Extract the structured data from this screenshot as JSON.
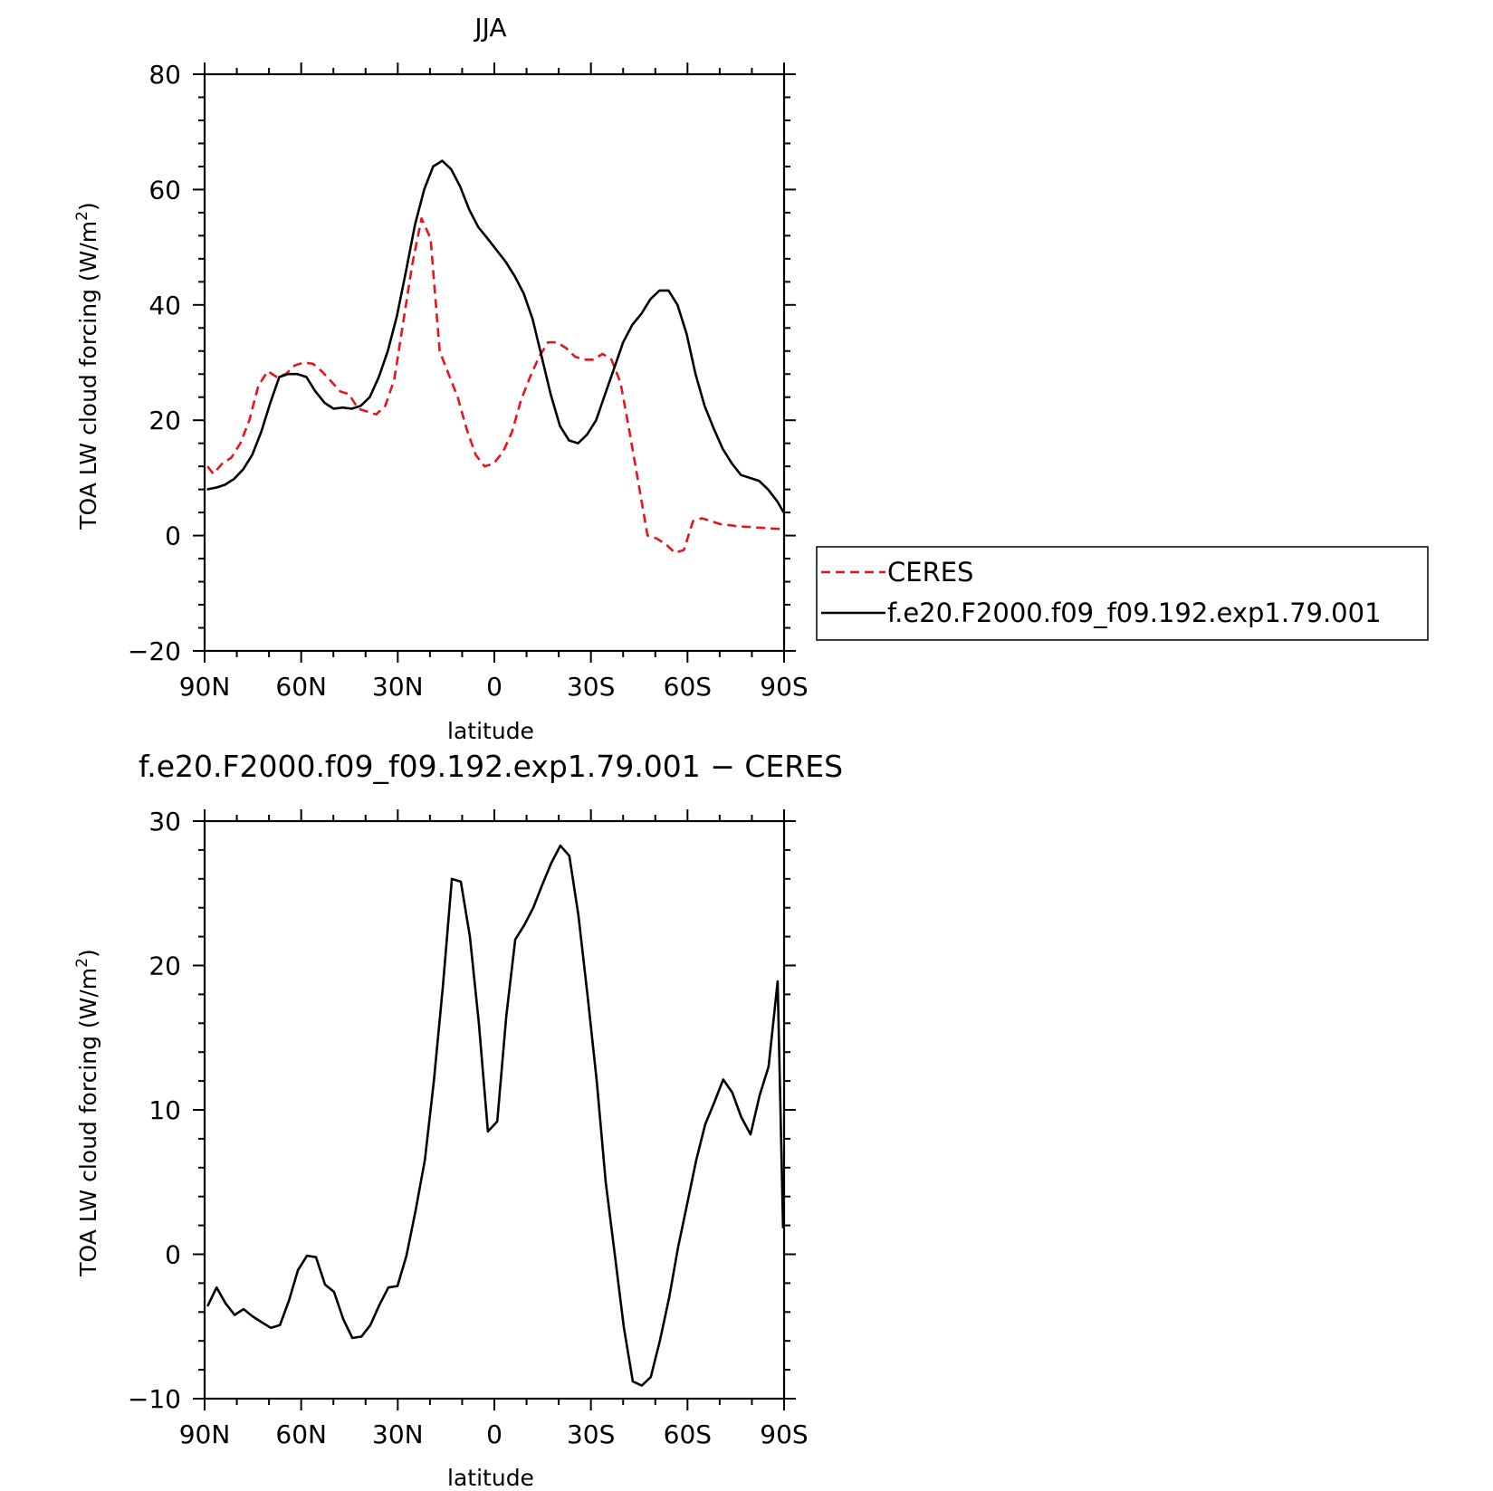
{
  "chart_data": [
    {
      "type": "line",
      "title": "JJA",
      "xlabel": "latitude",
      "ylabel_main": "TOA LW cloud forcing (W/m",
      "ylabel_sup": "2",
      "ylabel_close": ")",
      "xlim": [
        -90,
        90
      ],
      "ylim": [
        -20,
        80
      ],
      "x_ticks": [
        -90,
        -60,
        -30,
        0,
        30,
        60,
        90
      ],
      "x_tick_labels": [
        "90N",
        "60N",
        "30N",
        "0",
        "30S",
        "60S",
        "90S"
      ],
      "y_ticks": [
        -20,
        0,
        20,
        40,
        60,
        80
      ],
      "y_tick_labels": [
        "−20",
        "0",
        "20",
        "40",
        "60",
        "80"
      ],
      "legend_placement": "right",
      "series": [
        {
          "name": "CERES",
          "color": "#e8141b",
          "dash": "dashed",
          "x": [
            -89.1,
            -87.3,
            -84.5,
            -81.7,
            -78.9,
            -76.1,
            -73.3,
            -70.4,
            -67.6,
            -64.8,
            -62.0,
            -59.2,
            -56.4,
            -53.6,
            -50.8,
            -47.9,
            -45.1,
            -42.3,
            -39.5,
            -36.7,
            -33.9,
            -31.1,
            -28.3,
            -25.5,
            -22.6,
            -19.8,
            -17.0,
            -14.2,
            -11.4,
            -8.6,
            -5.8,
            -3.0,
            -0.2,
            2.7,
            5.5,
            8.3,
            11.1,
            13.9,
            16.7,
            19.5,
            22.3,
            25.1,
            28.0,
            30.8,
            33.6,
            36.4,
            39.2,
            42.0,
            44.8,
            47.6,
            50.4,
            53.3,
            56.1,
            58.9,
            61.7,
            64.5,
            67.3,
            70.1,
            72.9,
            75.7,
            78.6,
            81.4,
            84.2,
            87.0,
            89.8
          ],
          "y": [
            12.0,
            10.7,
            12.5,
            13.5,
            16.0,
            20.0,
            26.0,
            28.5,
            27.5,
            28.0,
            29.5,
            30.0,
            29.8,
            28.5,
            26.8,
            25.0,
            24.5,
            22.0,
            21.5,
            21.0,
            22.5,
            27.0,
            37.0,
            47.0,
            55.0,
            51.5,
            32.0,
            28.0,
            24.0,
            18.5,
            14.0,
            12.0,
            12.5,
            14.5,
            18.0,
            23.5,
            27.5,
            31.0,
            33.5,
            33.5,
            32.5,
            31.0,
            30.5,
            30.5,
            31.5,
            30.5,
            26.5,
            18.0,
            9.0,
            0.0,
            -0.5,
            -1.5,
            -3.0,
            -2.5,
            2.5,
            3.0,
            2.5,
            2.0,
            1.8,
            1.6,
            1.5,
            1.4,
            1.3,
            1.2,
            1.1
          ]
        },
        {
          "name": "f.e20.F2000.f09_f09.192.exp1.79.001",
          "color": "#000000",
          "dash": "solid",
          "x": [
            -89.3,
            -86.5,
            -83.7,
            -80.9,
            -78.0,
            -75.2,
            -72.4,
            -69.6,
            -66.8,
            -64.0,
            -61.2,
            -58.4,
            -55.6,
            -52.7,
            -49.9,
            -47.1,
            -44.3,
            -41.5,
            -38.7,
            -35.9,
            -33.1,
            -30.3,
            -27.4,
            -24.6,
            -21.8,
            -19.0,
            -16.2,
            -13.4,
            -10.6,
            -7.8,
            -5.0,
            -2.1,
            0.7,
            3.5,
            6.3,
            9.1,
            11.9,
            14.7,
            17.5,
            20.4,
            23.2,
            26.0,
            28.8,
            31.6,
            34.4,
            37.2,
            40.0,
            42.8,
            45.7,
            48.5,
            51.3,
            54.1,
            56.9,
            59.7,
            62.5,
            65.3,
            68.2,
            71.0,
            73.8,
            76.6,
            79.4,
            82.2,
            85.0,
            87.8,
            89.9
          ],
          "y": [
            8.0,
            8.3,
            8.8,
            9.8,
            11.5,
            14.0,
            18.0,
            23.0,
            27.5,
            28.0,
            28.0,
            27.5,
            25.0,
            23.0,
            22.0,
            22.2,
            22.0,
            22.5,
            24.0,
            27.5,
            32.0,
            38.0,
            46.0,
            54.0,
            60.0,
            64.0,
            65.0,
            63.5,
            60.5,
            56.5,
            53.5,
            51.5,
            49.5,
            47.5,
            45.0,
            42.0,
            37.5,
            31.0,
            24.5,
            19.0,
            16.5,
            16.0,
            17.5,
            20.0,
            24.5,
            29.0,
            33.5,
            36.5,
            38.5,
            41.0,
            42.5,
            42.5,
            40.0,
            35.0,
            28.0,
            22.5,
            18.5,
            15.0,
            12.5,
            10.5,
            10.0,
            9.5,
            8.0,
            6.0,
            4.0
          ]
        }
      ]
    },
    {
      "type": "line",
      "title": "f.e20.F2000.f09_f09.192.exp1.79.001 − CERES",
      "xlabel": "latitude",
      "ylabel_main": "TOA LW cloud forcing (W/m",
      "ylabel_sup": "2",
      "ylabel_close": ")",
      "xlim": [
        -90,
        90
      ],
      "ylim": [
        -10,
        30
      ],
      "x_ticks": [
        -90,
        -60,
        -30,
        0,
        30,
        60,
        90
      ],
      "x_tick_labels": [
        "90N",
        "60N",
        "30N",
        "0",
        "30S",
        "60S",
        "90S"
      ],
      "y_ticks": [
        -10,
        0,
        10,
        20,
        30
      ],
      "y_tick_labels": [
        "−10",
        "0",
        "10",
        "20",
        "30"
      ],
      "series": [
        {
          "color": "#000000",
          "dash": "solid",
          "x": [
            -89.1,
            -86.3,
            -83.5,
            -80.7,
            -77.9,
            -75.1,
            -72.3,
            -69.4,
            -66.6,
            -63.8,
            -61.0,
            -58.2,
            -55.4,
            -52.6,
            -49.8,
            -46.9,
            -44.1,
            -41.3,
            -38.5,
            -35.7,
            -32.9,
            -30.1,
            -27.3,
            -24.5,
            -21.6,
            -18.8,
            -16.0,
            -13.2,
            -10.4,
            -7.6,
            -4.8,
            -2.0,
            0.9,
            3.7,
            6.5,
            9.3,
            12.1,
            14.9,
            17.7,
            20.5,
            23.3,
            26.1,
            28.9,
            31.8,
            34.6,
            37.4,
            40.2,
            43.0,
            45.8,
            48.6,
            51.4,
            54.3,
            57.1,
            59.9,
            62.7,
            65.5,
            68.3,
            71.1,
            73.9,
            76.7,
            79.6,
            82.4,
            85.2,
            88.0,
            89.7
          ],
          "y": [
            -3.6,
            -2.3,
            -3.4,
            -4.2,
            -3.8,
            -4.3,
            -4.7,
            -5.1,
            -4.9,
            -3.2,
            -1.1,
            -0.1,
            -0.2,
            -2.1,
            -2.6,
            -4.5,
            -5.8,
            -5.7,
            -4.9,
            -3.5,
            -2.3,
            -2.2,
            -0.1,
            3.0,
            6.5,
            12.0,
            18.5,
            26.0,
            25.8,
            22.0,
            16.0,
            8.5,
            9.2,
            16.5,
            21.8,
            22.8,
            24.0,
            25.6,
            27.1,
            28.3,
            27.6,
            23.5,
            18.0,
            12.0,
            5.0,
            0.0,
            -5.0,
            -8.8,
            -9.1,
            -8.5,
            -6.0,
            -3.0,
            0.5,
            3.5,
            6.5,
            9.0,
            10.5,
            12.1,
            11.2,
            9.5,
            8.3,
            11.0,
            13.0,
            18.9,
            1.8
          ]
        }
      ]
    }
  ]
}
